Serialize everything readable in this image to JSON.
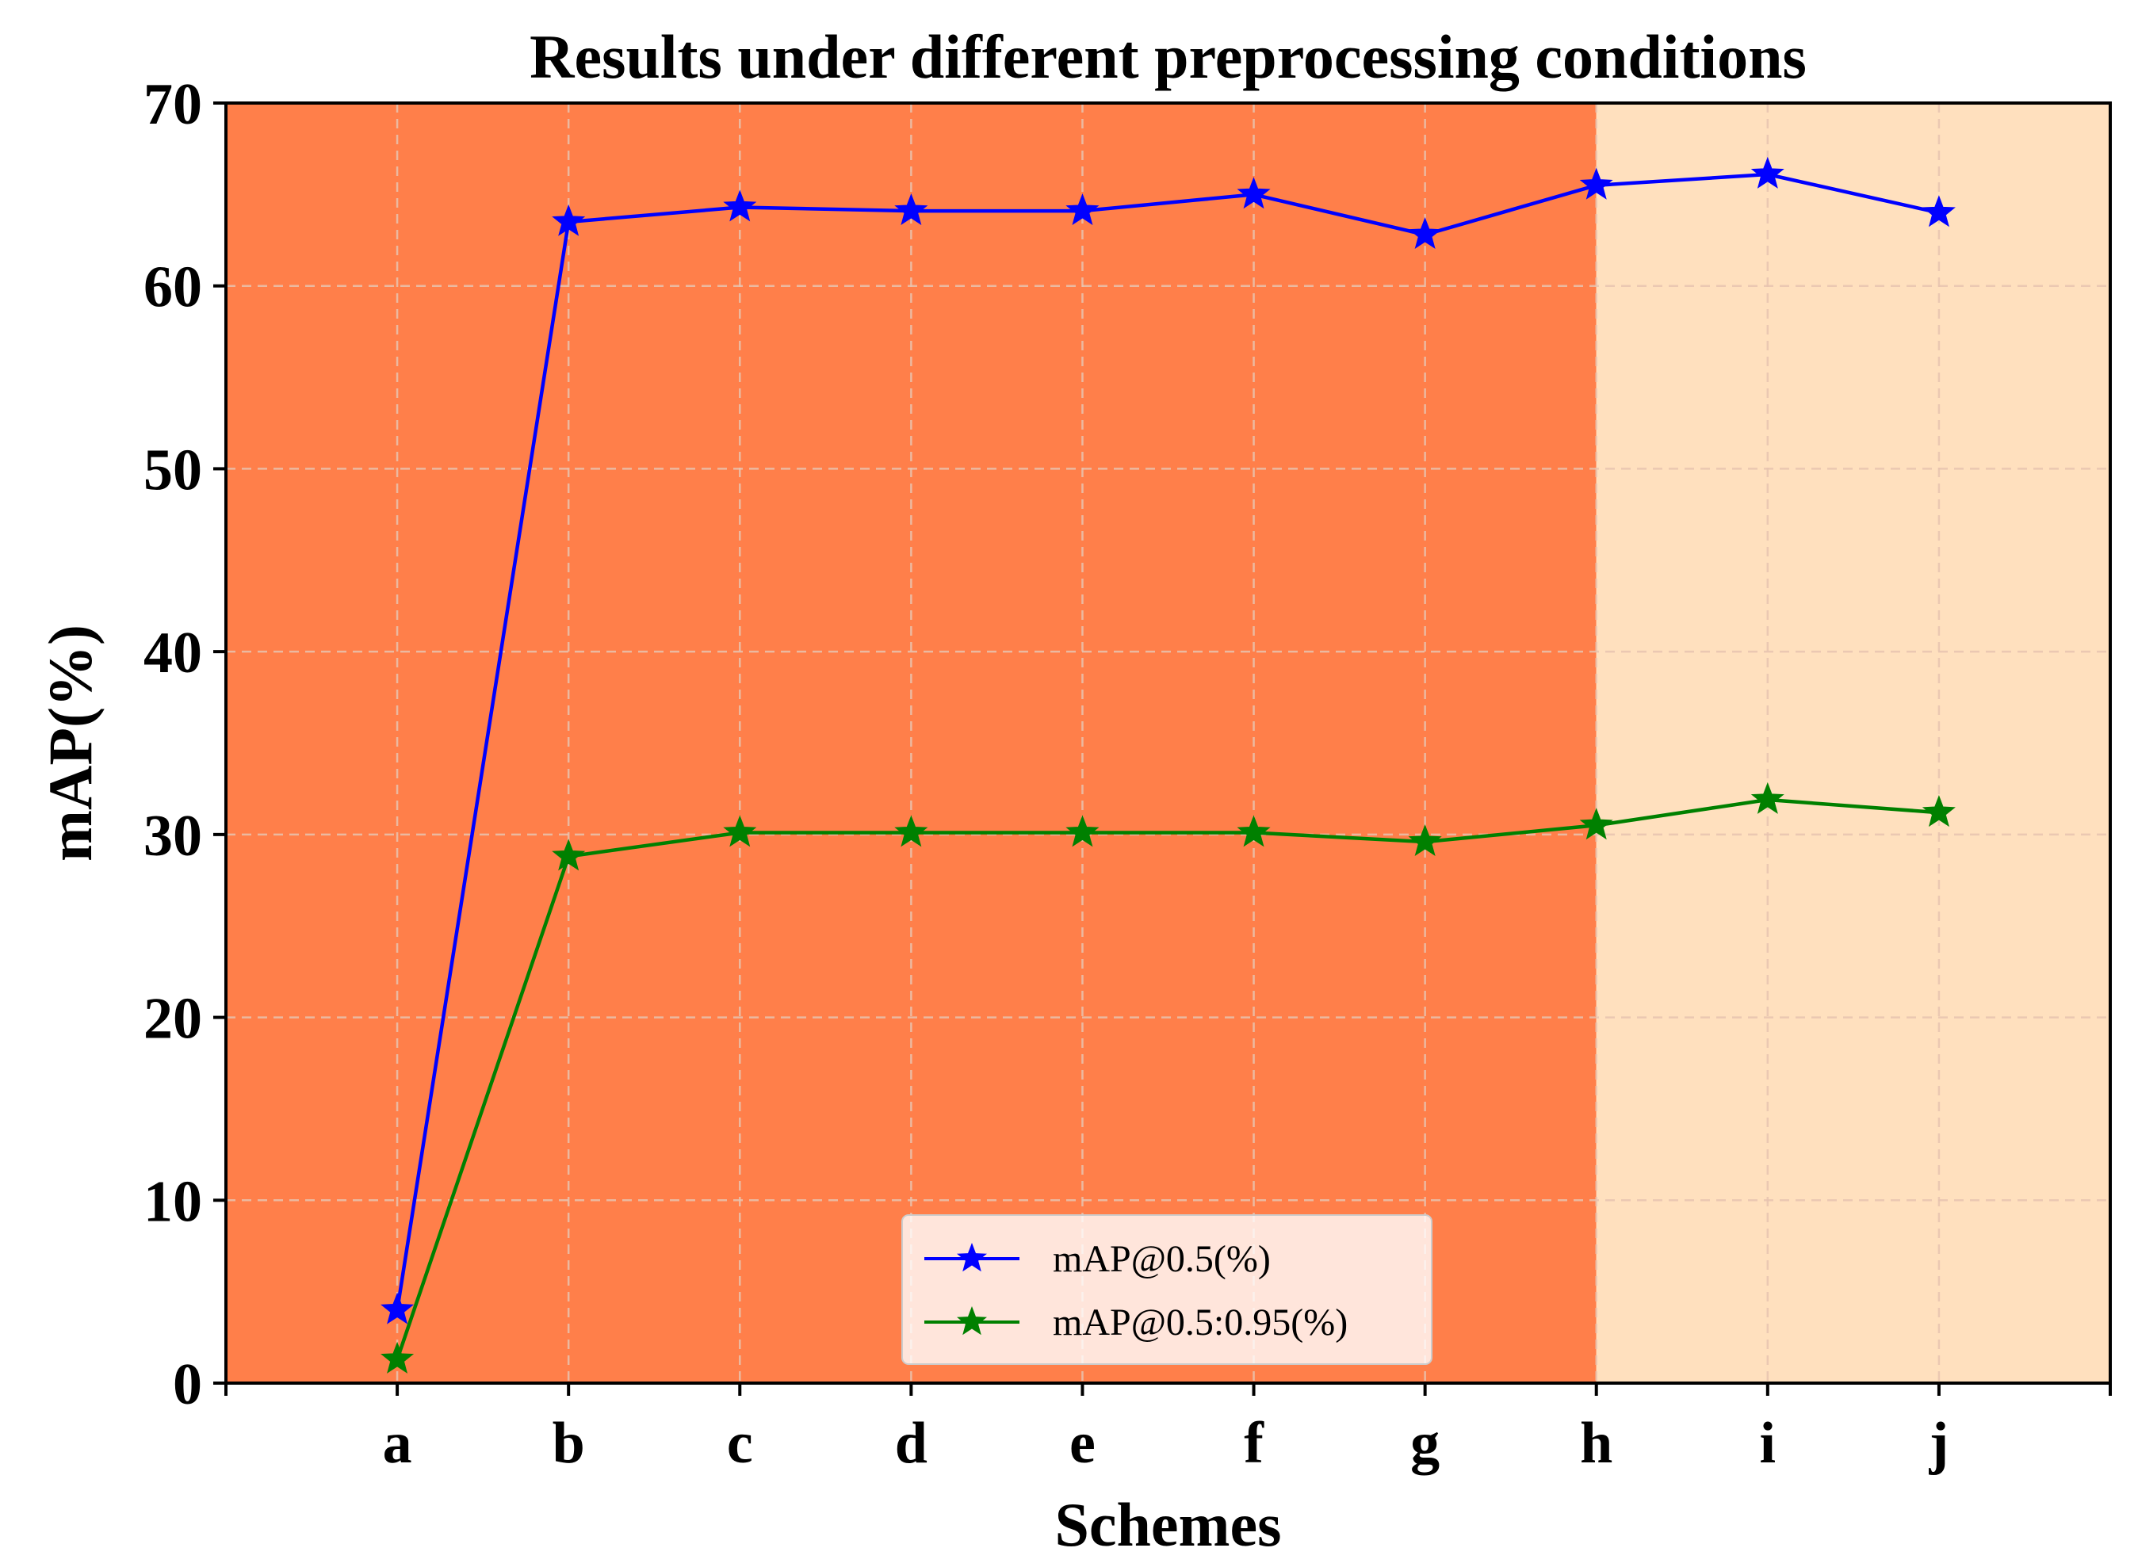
{
  "chart_data": {
    "type": "line",
    "title": "Results under different preprocessing conditions",
    "xlabel": "Schemes",
    "ylabel": "mAP(%)",
    "categories": [
      "a",
      "b",
      "c",
      "d",
      "e",
      "f",
      "g",
      "h",
      "i",
      "j"
    ],
    "ylim": [
      0,
      70
    ],
    "yticks": [
      0,
      10,
      20,
      30,
      40,
      50,
      60,
      70
    ],
    "grid": true,
    "legend_position": "lower-center",
    "series": [
      {
        "name": "mAP@0.5(%)",
        "color": "#0000ff",
        "marker": "star",
        "values": [
          4.0,
          63.5,
          64.3,
          64.1,
          64.1,
          65.0,
          62.8,
          65.5,
          66.1,
          64.0
        ]
      },
      {
        "name": "mAP@0.5:0.95(%)",
        "color": "#008000",
        "marker": "star",
        "values": [
          1.3,
          28.8,
          30.1,
          30.1,
          30.1,
          30.1,
          29.6,
          30.5,
          31.9,
          31.2
        ]
      }
    ],
    "background_regions": [
      {
        "from": -1,
        "to": 7,
        "color": "#ff7f4a"
      },
      {
        "from": 7,
        "to": 10,
        "color": "#ffe0be"
      }
    ]
  }
}
